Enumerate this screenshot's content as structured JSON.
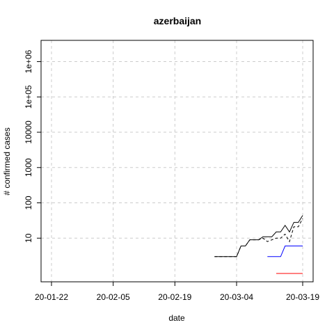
{
  "chart_data": {
    "type": "line",
    "title": "azerbaijan",
    "xlabel": "date",
    "ylabel": "# confirmed cases",
    "y_scale": "log",
    "ylim": [
      1,
      4000000
    ],
    "xlim": [
      "2020-01-18",
      "2020-03-19"
    ],
    "grid": true,
    "x_ticks": [
      {
        "date": "2020-01-22",
        "label": "20-01-22"
      },
      {
        "date": "2020-02-05",
        "label": "20-02-05"
      },
      {
        "date": "2020-02-19",
        "label": "20-02-19"
      },
      {
        "date": "2020-03-04",
        "label": "20-03-04"
      },
      {
        "date": "2020-03-19",
        "label": "20-03-19"
      }
    ],
    "y_ticks": [
      {
        "value": 10,
        "label": "10"
      },
      {
        "value": 100,
        "label": "100"
      },
      {
        "value": 1000,
        "label": "1000"
      },
      {
        "value": 10000,
        "label": "10000"
      },
      {
        "value": 100000,
        "label": "1e+05"
      },
      {
        "value": 1000000,
        "label": "1e+06"
      }
    ],
    "series": [
      {
        "color": "#000000",
        "dash": "solid",
        "points": [
          [
            "2020-02-28",
            3
          ],
          [
            "2020-03-01",
            3
          ],
          [
            "2020-03-02",
            3
          ],
          [
            "2020-03-04",
            3
          ],
          [
            "2020-03-05",
            6
          ],
          [
            "2020-03-06",
            6
          ],
          [
            "2020-03-07",
            9
          ],
          [
            "2020-03-08",
            9
          ],
          [
            "2020-03-09",
            9
          ],
          [
            "2020-03-10",
            11
          ],
          [
            "2020-03-11",
            11
          ],
          [
            "2020-03-12",
            11
          ],
          [
            "2020-03-13",
            15
          ],
          [
            "2020-03-14",
            15
          ],
          [
            "2020-03-15",
            23
          ],
          [
            "2020-03-16",
            15
          ],
          [
            "2020-03-17",
            28
          ],
          [
            "2020-03-18",
            28
          ],
          [
            "2020-03-19",
            44
          ]
        ]
      },
      {
        "color": "#000000",
        "dash": "dashed",
        "points": [
          [
            "2020-02-28",
            3
          ],
          [
            "2020-03-01",
            3
          ],
          [
            "2020-03-02",
            3
          ],
          [
            "2020-03-04",
            3
          ],
          [
            "2020-03-05",
            6
          ],
          [
            "2020-03-06",
            6
          ],
          [
            "2020-03-07",
            9
          ],
          [
            "2020-03-08",
            9
          ],
          [
            "2020-03-09",
            9
          ],
          [
            "2020-03-10",
            10
          ],
          [
            "2020-03-11",
            8
          ],
          [
            "2020-03-12",
            9
          ],
          [
            "2020-03-13",
            10
          ],
          [
            "2020-03-14",
            10
          ],
          [
            "2020-03-15",
            13
          ],
          [
            "2020-03-16",
            8
          ],
          [
            "2020-03-17",
            21
          ],
          [
            "2020-03-18",
            21
          ],
          [
            "2020-03-19",
            36
          ]
        ]
      },
      {
        "color": "#0000ff",
        "dash": "solid",
        "points": [
          [
            "2020-03-11",
            3
          ],
          [
            "2020-03-12",
            3
          ],
          [
            "2020-03-13",
            3
          ],
          [
            "2020-03-14",
            3
          ],
          [
            "2020-03-15",
            6
          ],
          [
            "2020-03-16",
            6
          ],
          [
            "2020-03-17",
            6
          ],
          [
            "2020-03-18",
            6
          ],
          [
            "2020-03-19",
            6
          ]
        ]
      },
      {
        "color": "#ff0000",
        "dash": "solid",
        "points": [
          [
            "2020-03-13",
            1
          ],
          [
            "2020-03-14",
            1
          ],
          [
            "2020-03-15",
            1
          ],
          [
            "2020-03-16",
            1
          ],
          [
            "2020-03-17",
            1
          ],
          [
            "2020-03-18",
            1
          ],
          [
            "2020-03-19",
            1
          ]
        ]
      }
    ]
  }
}
